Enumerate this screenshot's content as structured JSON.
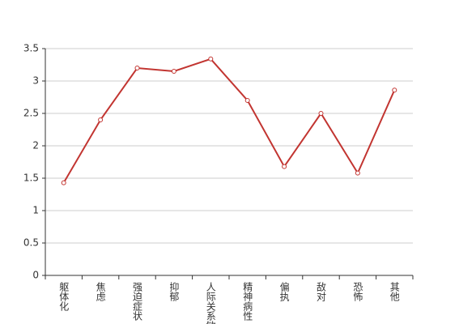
{
  "chart_data": {
    "type": "line",
    "categories": [
      "躯体化",
      "焦虑",
      "强迫症状",
      "抑郁",
      "人际关系敏感",
      "精神病性",
      "偏执",
      "敌对",
      "恐怖",
      "其他"
    ],
    "values": [
      1.43,
      2.4,
      3.2,
      3.15,
      3.34,
      2.7,
      1.68,
      2.5,
      1.58,
      2.86
    ],
    "color": "#c23531",
    "ylim": [
      0,
      3.5
    ],
    "yticks": [
      0,
      0.5,
      1,
      1.5,
      2,
      2.5,
      3,
      3.5
    ],
    "grid": true
  }
}
